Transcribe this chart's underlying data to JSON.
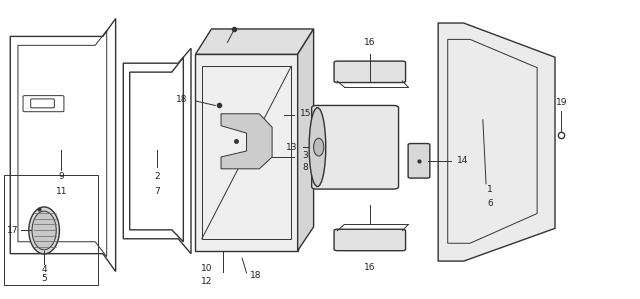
{
  "bg_color": "#ffffff",
  "line_color": "#333333",
  "label_color": "#222222",
  "lw_main": 1.0,
  "lw_thin": 0.7,
  "fs": 6.5
}
